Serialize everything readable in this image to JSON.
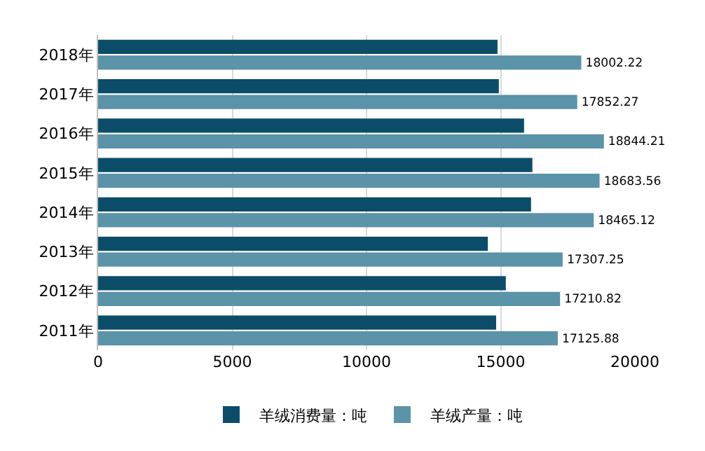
{
  "chart_data": {
    "type": "bar",
    "orientation": "horizontal",
    "categories": [
      "2018年",
      "2017年",
      "2016年",
      "2015年",
      "2014年",
      "2013年",
      "2012年",
      "2011年"
    ],
    "series": [
      {
        "name": "羊绒消费量：吨",
        "color": "#0b4d68",
        "values": [
          14880,
          14930,
          15870,
          16180,
          16130,
          14520,
          15190,
          14830
        ]
      },
      {
        "name": "羊绒产量：吨",
        "color": "#5b93a8",
        "values": [
          18002.22,
          17852.27,
          18844.21,
          18683.56,
          18465.12,
          17307.25,
          17210.82,
          17125.88
        ],
        "value_labels": [
          "18002.22",
          "17852.27",
          "18844.21",
          "18683.56",
          "18465.12",
          "17307.25",
          "17210.82",
          "17125.88"
        ]
      }
    ],
    "xlim": [
      0,
      20000
    ],
    "xticks": [
      0,
      5000,
      10000,
      15000,
      20000
    ],
    "grid": "x",
    "legend": "bottom"
  }
}
